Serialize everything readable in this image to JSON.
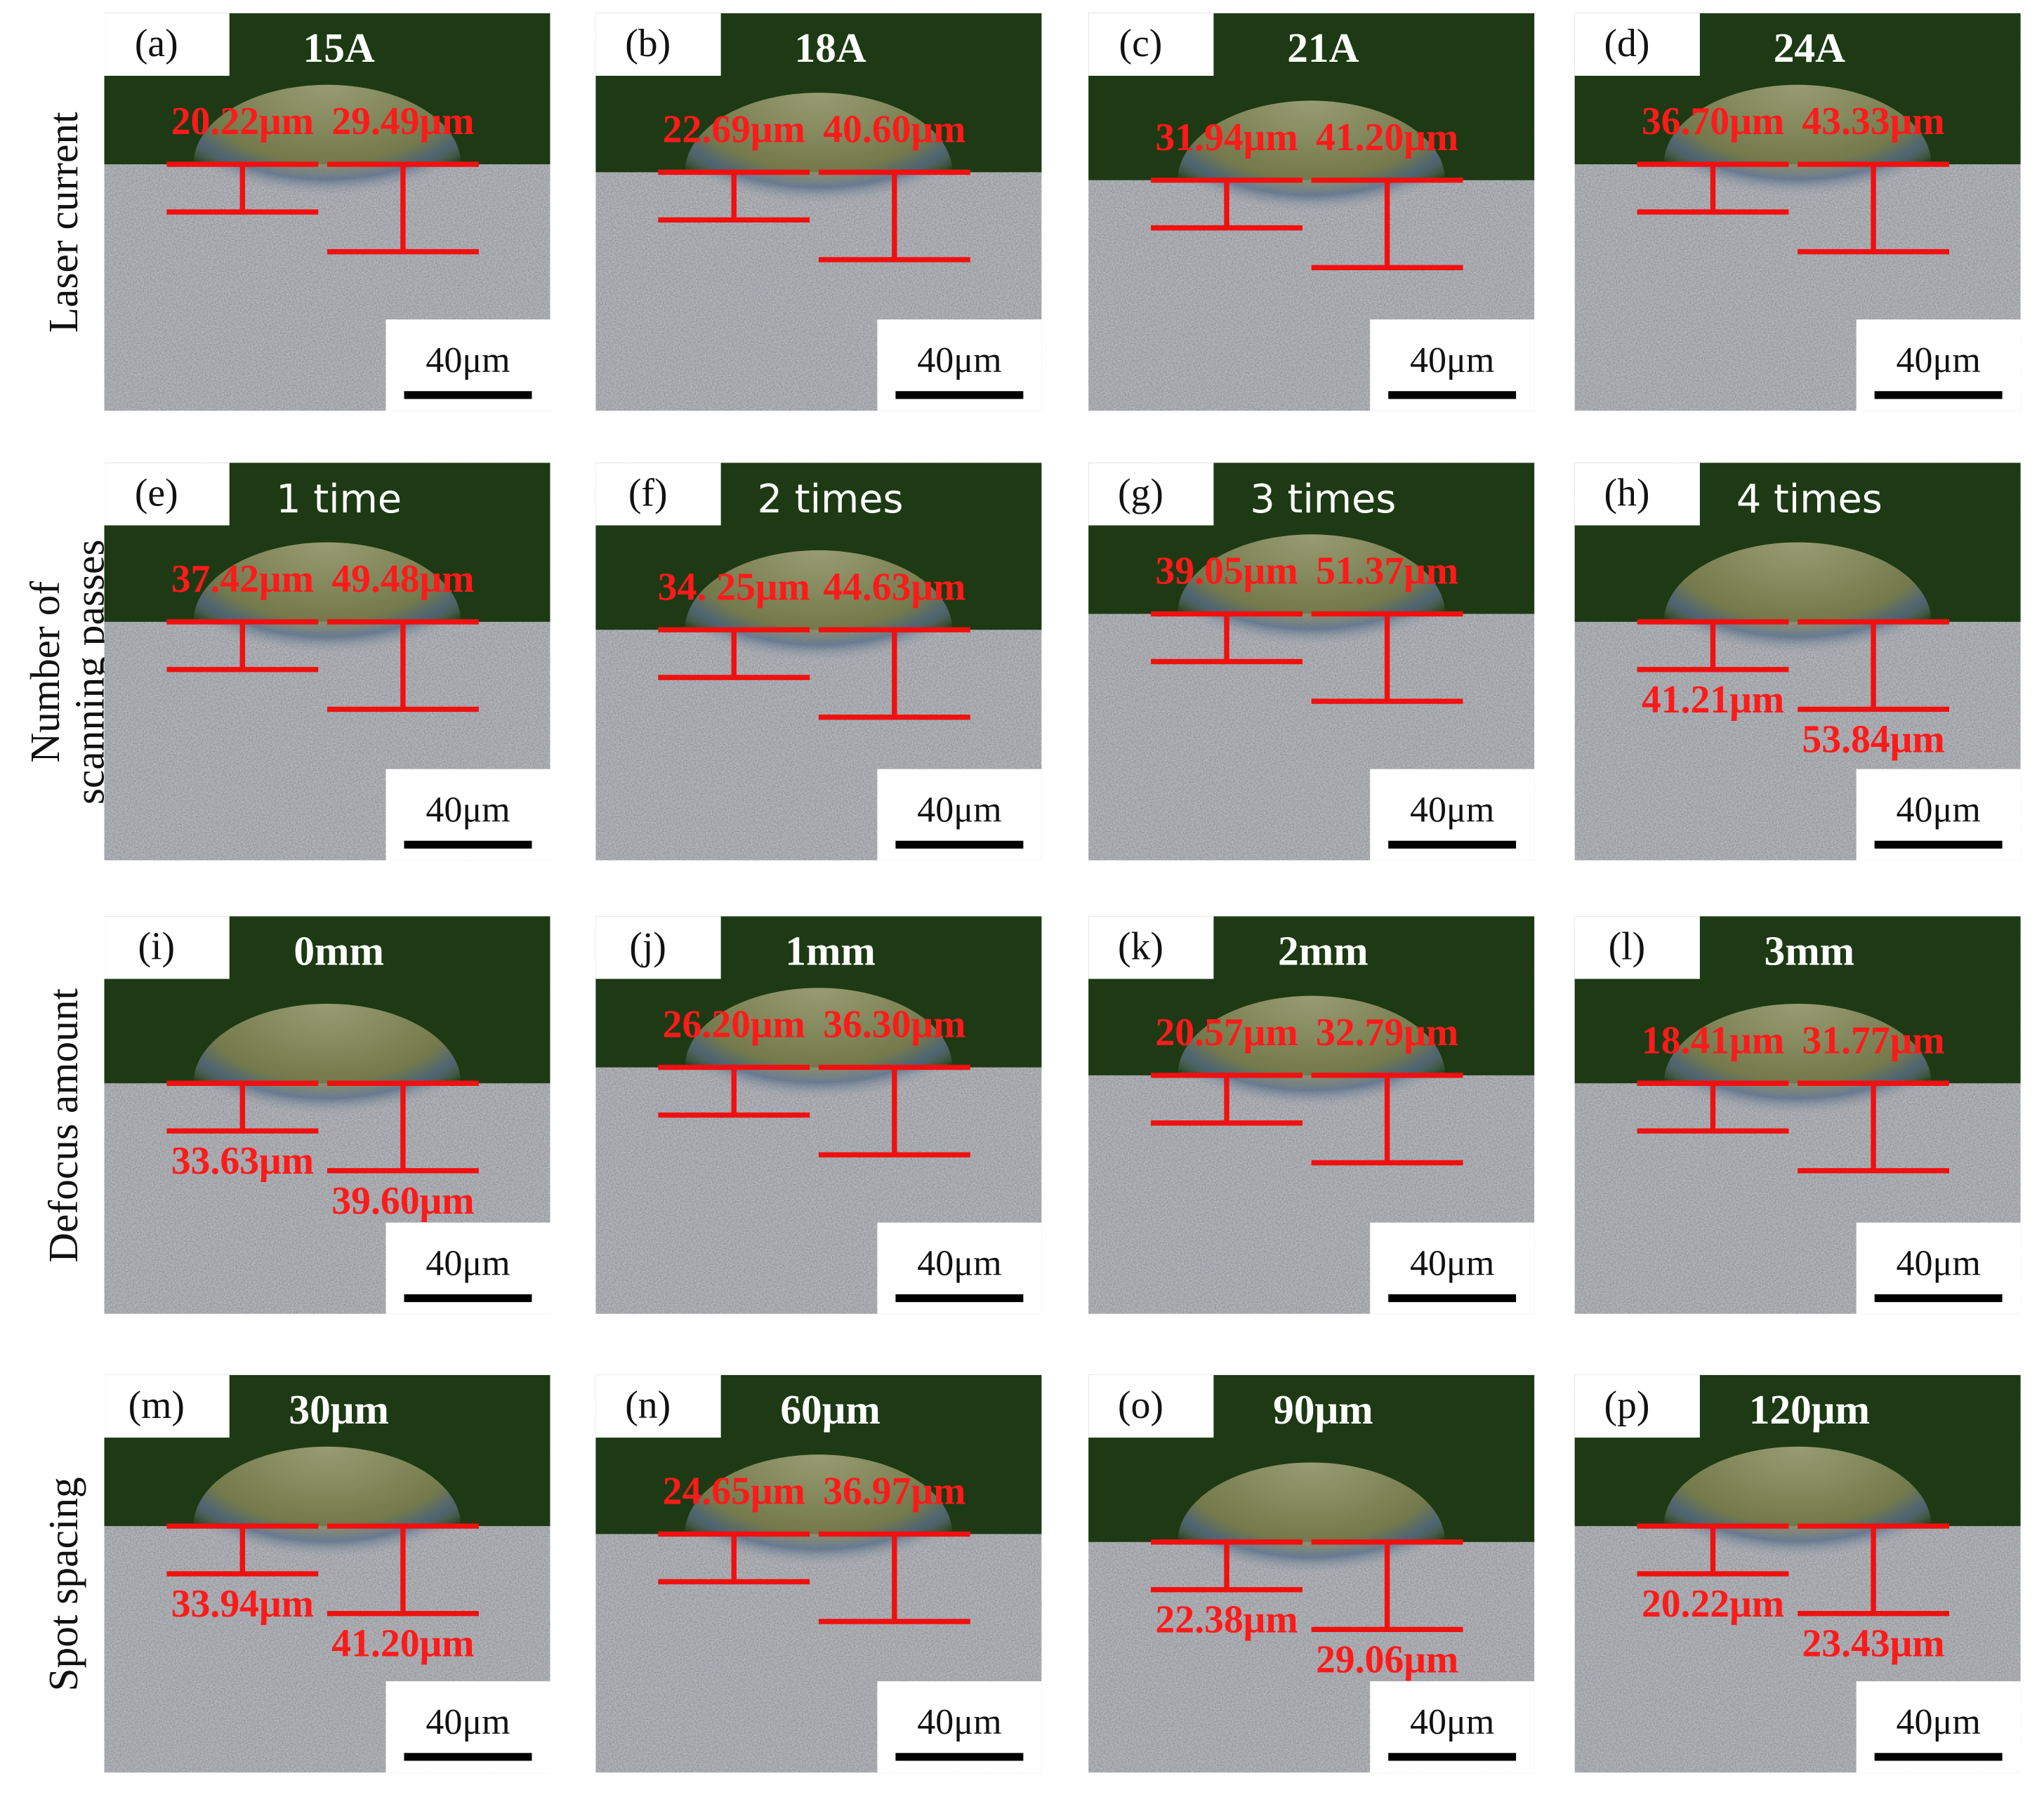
{
  "figure": {
    "rows": [
      {
        "label": [
          "Laser current"
        ],
        "panels": [
          {
            "tag": "(a)",
            "setting": "15A",
            "measurements": [
              "20.22μm",
              "29.49μm"
            ],
            "scale": "40μm"
          },
          {
            "tag": "(b)",
            "setting": "18A",
            "measurements": [
              "22.69μm",
              "40.60μm"
            ],
            "scale": "40μm"
          },
          {
            "tag": "(c)",
            "setting": "21A",
            "measurements": [
              "31.94μm",
              "41.20μm"
            ],
            "scale": "40μm"
          },
          {
            "tag": "(d)",
            "setting": "24A",
            "measurements": [
              "36.70μm",
              "43.33μm"
            ],
            "scale": "40μm"
          }
        ]
      },
      {
        "label": [
          "Number of",
          "scanning passes"
        ],
        "panels": [
          {
            "tag": "(e)",
            "setting": "1 time",
            "measurements": [
              "37.42μm",
              "49.48μm"
            ],
            "scale": "40μm"
          },
          {
            "tag": "(f)",
            "setting": "2 times",
            "measurements": [
              "34. 25μm",
              "44.63μm"
            ],
            "scale": "40μm"
          },
          {
            "tag": "(g)",
            "setting": "3 times",
            "measurements": [
              "39.05μm",
              "51.37μm"
            ],
            "scale": "40μm"
          },
          {
            "tag": "(h)",
            "setting": "4 times",
            "measurements": [
              "41.21μm",
              "53.84μm"
            ],
            "scale": "40μm"
          }
        ]
      },
      {
        "label": [
          "Defocus amount"
        ],
        "panels": [
          {
            "tag": "(i)",
            "setting": "0mm",
            "measurements": [
              "33.63μm",
              "39.60μm"
            ],
            "scale": "40μm"
          },
          {
            "tag": "(j)",
            "setting": "1mm",
            "measurements": [
              "26.20μm",
              "36.30μm"
            ],
            "scale": "40μm"
          },
          {
            "tag": "(k)",
            "setting": "2mm",
            "measurements": [
              "20.57μm",
              "32.79μm"
            ],
            "scale": "40μm"
          },
          {
            "tag": "(l)",
            "setting": "3mm",
            "measurements": [
              "18.41μm",
              "31.77μm"
            ],
            "scale": "40μm"
          }
        ]
      },
      {
        "label": [
          "Spot spacing"
        ],
        "panels": [
          {
            "tag": "(m)",
            "setting": "30μm",
            "measurements": [
              "33.94μm",
              "41.20μm"
            ],
            "scale": "40μm"
          },
          {
            "tag": "(n)",
            "setting": "60μm",
            "measurements": [
              "24.65μm",
              "36.97μm"
            ],
            "scale": "40μm"
          },
          {
            "tag": "(o)",
            "setting": "90μm",
            "measurements": [
              "22.38μm",
              "29.06μm"
            ],
            "scale": "40μm"
          },
          {
            "tag": "(p)",
            "setting": "120μm",
            "measurements": [
              "20.22μm",
              "23.43μm"
            ],
            "scale": "40μm"
          }
        ]
      }
    ]
  }
}
